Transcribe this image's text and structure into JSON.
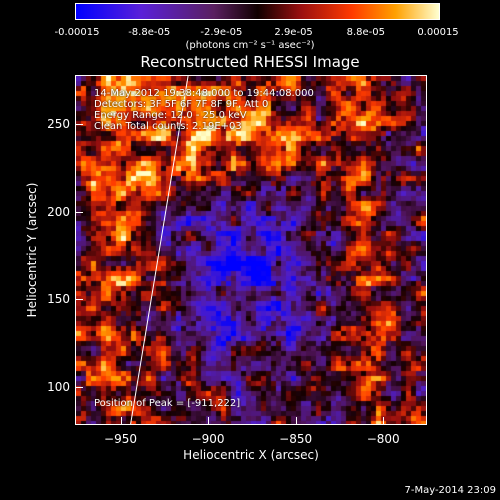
{
  "colorbar": {
    "tick_labels": [
      "-0.00015",
      "-8.8e-05",
      "-2.9e-05",
      "2.9e-05",
      "8.8e-05",
      "0.00015"
    ],
    "unit": "(photons cm⁻² s⁻¹ asec⁻²)",
    "range": [
      -0.00015,
      0.00015
    ]
  },
  "chart_data": {
    "type": "heatmap",
    "title": "Reconstructed RHESSI Image",
    "xlabel": "Heliocentric X (arcsec)",
    "ylabel": "Heliocentric Y (arcsec)",
    "xlim": [
      -976,
      -775
    ],
    "ylim": [
      78,
      278
    ],
    "x_ticks": [
      -950,
      -900,
      -850,
      -800
    ],
    "x_tick_labels": [
      "−950",
      "−900",
      "−850",
      "−800"
    ],
    "y_ticks": [
      100,
      150,
      200,
      250
    ],
    "y_tick_labels": [
      "100",
      "150",
      "200",
      "250"
    ],
    "annotations": [
      "14-May-2012 19:38:48.000 to 19:44:08.000",
      "Detectors: 3F 5F 6F 7F 8F 9F, Att 0",
      "Energy Range: 12.0 - 25.0 keV",
      "Clean    Total counts: 2.19E+03"
    ],
    "peak_label": "Position of Peak = [-911,222]",
    "peak": [
      -911,
      222
    ],
    "limb_line": [
      [
        -945,
        78
      ],
      [
        -912,
        278
      ]
    ]
  },
  "footer": "7-May-2014 23:09"
}
